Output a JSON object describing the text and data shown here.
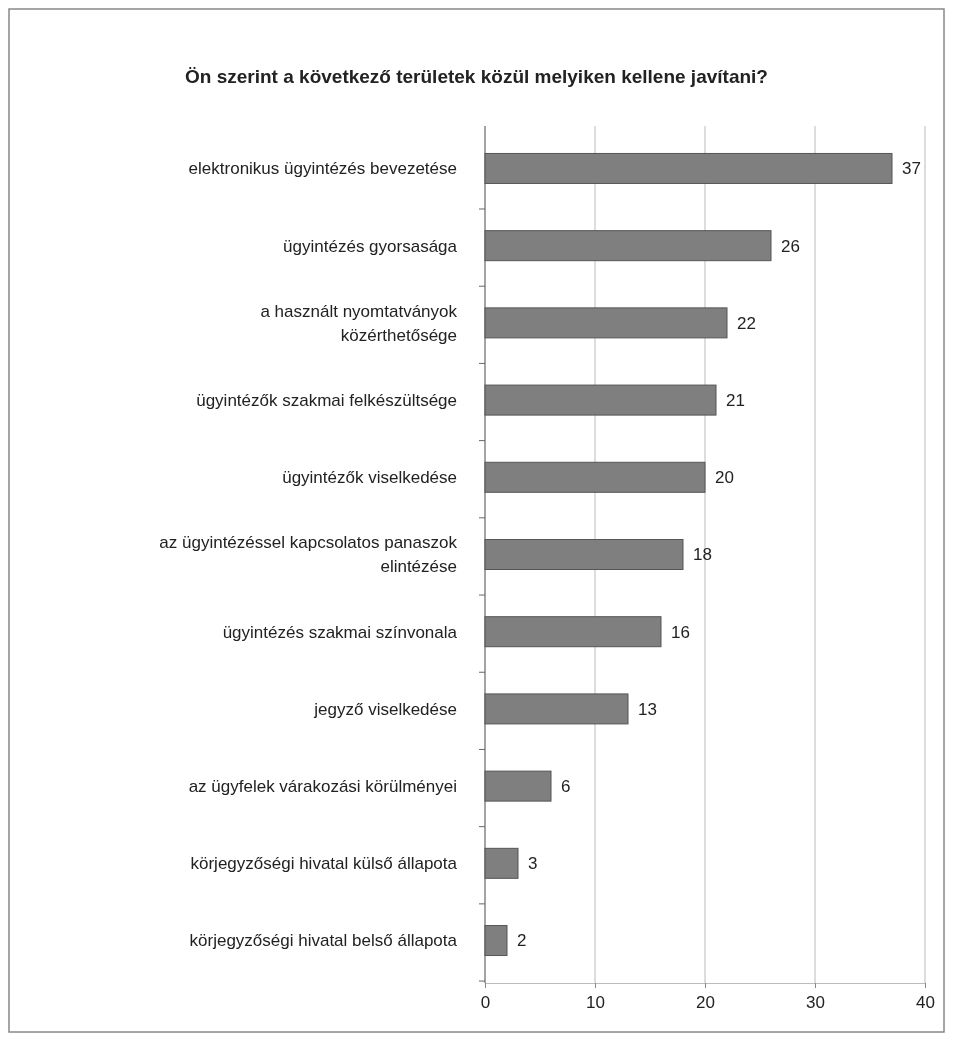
{
  "chart_data": {
    "type": "bar",
    "orientation": "horizontal",
    "title": "Ön szerint a következő területek közül melyiken kellene javítani?",
    "categories": [
      "elektronikus ügyintézés bevezetése",
      "ügyintézés gyorsasága",
      "a használt nyomtatványok közérthetősége",
      "ügyintézők szakmai felkészültsége",
      "ügyintézők viselkedése",
      "az ügyintézéssel kapcsolatos panaszok elintézése",
      "ügyintézés szakmai színvonala",
      "jegyző viselkedése",
      "az ügyfelek várakozási körülményei",
      "körjegyzőségi hivatal külső állapota",
      "körjegyzőségi hivatal belső állapota"
    ],
    "values": [
      37,
      26,
      22,
      21,
      20,
      18,
      16,
      13,
      6,
      3,
      2
    ],
    "color": "#7f7f7f",
    "xlim": [
      0,
      40
    ],
    "xticks": [
      0,
      10,
      20,
      30,
      40
    ],
    "grid": "x",
    "data_labels": true
  }
}
